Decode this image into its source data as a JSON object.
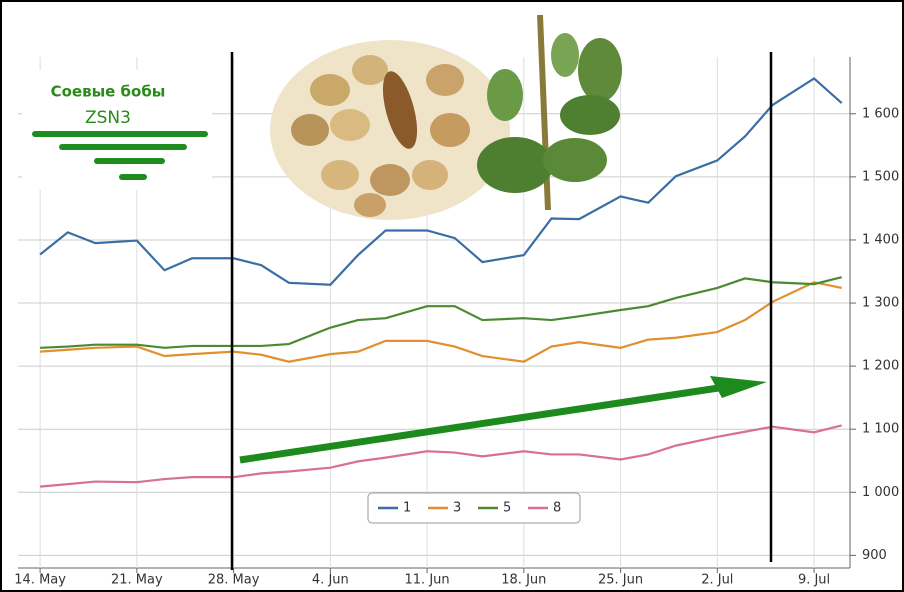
{
  "chart_data": {
    "type": "line",
    "annotations": [
      "Соевые бобы",
      "ZSN3"
    ],
    "x": [
      0,
      2,
      4,
      7,
      9,
      11,
      14,
      16,
      18,
      21,
      23,
      25,
      28,
      30,
      32,
      35,
      37,
      39,
      42,
      44,
      46,
      49,
      51,
      53,
      56,
      58
    ],
    "xlim": [
      -1.6,
      58.6
    ],
    "xticks": [
      {
        "value": 0,
        "label": "14. May"
      },
      {
        "value": 7,
        "label": "21. May"
      },
      {
        "value": 14,
        "label": "28. May"
      },
      {
        "value": 21,
        "label": "4. Jun"
      },
      {
        "value": 28,
        "label": "11. Jun"
      },
      {
        "value": 35,
        "label": "18. Jun"
      },
      {
        "value": 42,
        "label": "25. Jun"
      },
      {
        "value": 49,
        "label": "2. Jul"
      },
      {
        "value": 56,
        "label": "9. Jul"
      }
    ],
    "ylim": [
      880,
      1690
    ],
    "yticks": [
      900,
      {
        "value": 1000,
        "label": "1 000"
      },
      {
        "value": 1100,
        "label": "1 100"
      },
      {
        "value": 1200,
        "label": "1 200"
      },
      {
        "value": 1300,
        "label": "1 300"
      },
      {
        "value": 1400,
        "label": "1 400"
      },
      {
        "value": 1500,
        "label": "1 500"
      },
      {
        "value": 1600,
        "label": "1 600"
      }
    ],
    "grid": true,
    "legend": "bottom",
    "series": [
      {
        "name": "1",
        "color": "#3a6ea5",
        "values": [
          1377,
          1412,
          1395,
          1399,
          1352,
          1371,
          1371,
          1360,
          1332,
          1329,
          1376,
          1415,
          1415,
          1403,
          1365,
          1376,
          1434,
          1433,
          1469,
          1459,
          1501,
          1526,
          1564,
          1614,
          1656,
          1617
        ]
      },
      {
        "name": "3",
        "color": "#e09030",
        "values": [
          1223,
          1226,
          1229,
          1231,
          1216,
          1219,
          1223,
          1218,
          1207,
          1219,
          1223,
          1240,
          1240,
          1231,
          1216,
          1207,
          1231,
          1238,
          1229,
          1242,
          1245,
          1254,
          1273,
          1302,
          1333,
          1324
        ]
      },
      {
        "name": "5",
        "color": "#4a8a30",
        "values": [
          1229,
          1231,
          1234,
          1234,
          1229,
          1232,
          1232,
          1232,
          1235,
          1261,
          1273,
          1276,
          1295,
          1295,
          1273,
          1276,
          1273,
          1279,
          1289,
          1295,
          1308,
          1324,
          1339,
          1333,
          1330,
          1341
        ]
      },
      {
        "name": "8",
        "color": "#d87090",
        "values": [
          1009,
          1013,
          1017,
          1016,
          1021,
          1024,
          1024,
          1030,
          1033,
          1039,
          1049,
          1055,
          1065,
          1063,
          1057,
          1065,
          1060,
          1060,
          1052,
          1060,
          1074,
          1088,
          1096,
          1104,
          1095,
          1106
        ]
      }
    ]
  }
}
